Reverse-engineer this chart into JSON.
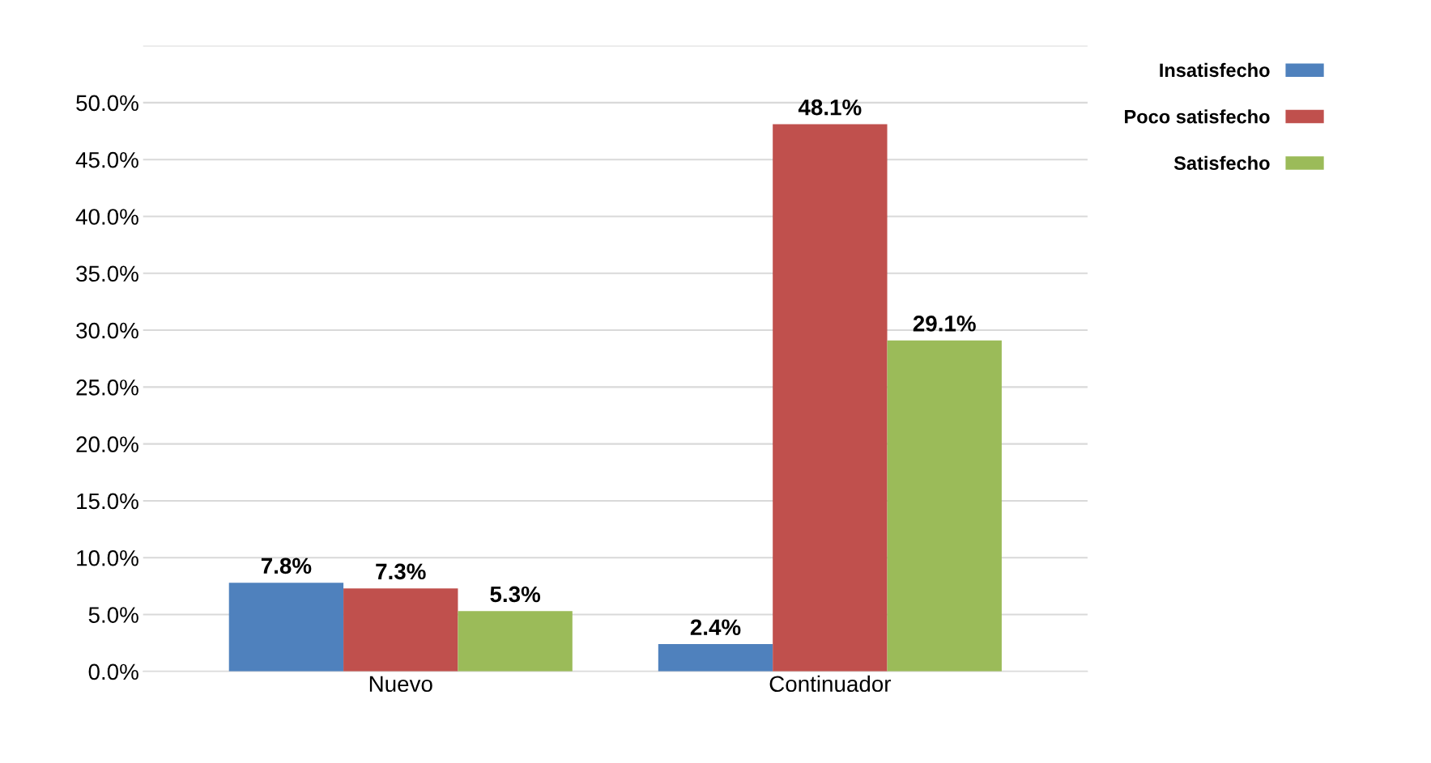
{
  "chart_data": {
    "type": "bar",
    "categories": [
      "Nuevo",
      "Continuador"
    ],
    "series": [
      {
        "name": "Insatisfecho",
        "color": "#4f81bd",
        "values": [
          7.8,
          2.4
        ],
        "value_labels": [
          "7.8%",
          "2.4%"
        ]
      },
      {
        "name": "Poco satisfecho",
        "color": "#c0504d",
        "values": [
          7.3,
          48.1
        ],
        "value_labels": [
          "7.3%",
          "48.1%"
        ]
      },
      {
        "name": "Satisfecho",
        "color": "#9bbb59",
        "values": [
          5.3,
          29.1
        ],
        "value_labels": [
          "5.3%",
          "29.1%"
        ]
      }
    ],
    "ylim": [
      0,
      55
    ],
    "yticks": [
      {
        "value": 0,
        "label": "0.0%"
      },
      {
        "value": 5,
        "label": "5.0%"
      },
      {
        "value": 10,
        "label": "10.0%"
      },
      {
        "value": 15,
        "label": "15.0%"
      },
      {
        "value": 20,
        "label": "20.0%"
      },
      {
        "value": 25,
        "label": "25.0%"
      },
      {
        "value": 30,
        "label": "30.0%"
      },
      {
        "value": 35,
        "label": "35.0%"
      },
      {
        "value": 40,
        "label": "40.0%"
      },
      {
        "value": 45,
        "label": "45.0%"
      },
      {
        "value": 50,
        "label": "50.0%"
      },
      {
        "value": 55,
        "label": null
      }
    ],
    "grid": "y",
    "legend": "top right"
  }
}
